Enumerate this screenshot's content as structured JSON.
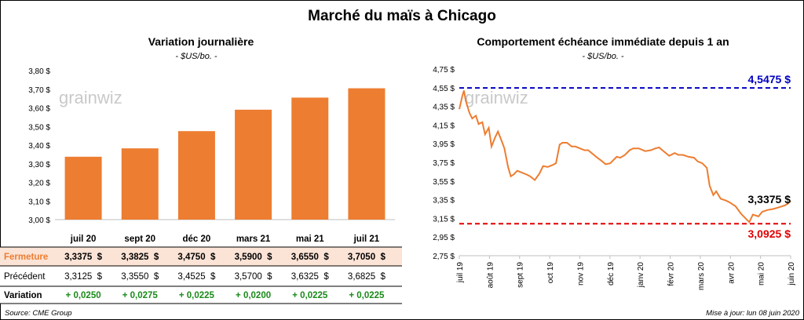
{
  "title": "Marché du maïs à Chicago",
  "left_title": "Variation  journalière",
  "left_unit": "- $US/bo. -",
  "right_title": "Comportement  échéance immédiate depuis 1 an",
  "right_unit": "- $US/bo. -",
  "source": "Source: CME Group",
  "updated": "Mise à jour: lun 08 juin 2020",
  "watermark": "grainwiz",
  "colors": {
    "bar": "#ED7D31",
    "line": "#ED7D31",
    "high": "#0000C0",
    "low": "#E00000",
    "green": "#1A8A1A",
    "row_bg": "#FBE3D6"
  },
  "table": {
    "labels": {
      "fermeture": "Fermeture",
      "precedent": "Précédent",
      "variation": "Variation"
    },
    "fermeture": [
      "3,3375  $",
      "3,3825  $",
      "3,4750  $",
      "3,5900  $",
      "3,6550  $",
      "3,7050  $"
    ],
    "precedent": [
      "3,3125  $",
      "3,3550  $",
      "3,4525  $",
      "3,5700  $",
      "3,6325  $",
      "3,6825  $"
    ],
    "variation": [
      "+ 0,0250",
      "+ 0,0275",
      "+ 0,0225",
      "+ 0,0200",
      "+ 0,0225",
      "+ 0,0225"
    ]
  },
  "chart_data": [
    {
      "type": "bar",
      "categories": [
        "juil 20",
        "sept 20",
        "déc 20",
        "mars 21",
        "mai 21",
        "juil 21"
      ],
      "values": [
        3.3375,
        3.3825,
        3.475,
        3.59,
        3.655,
        3.705
      ],
      "ylim": [
        3.0,
        3.8
      ],
      "yticks": [
        "3,00 $",
        "3,10 $",
        "3,20 $",
        "3,30 $",
        "3,40 $",
        "3,50 $",
        "3,60 $",
        "3,70 $",
        "3,80 $"
      ],
      "title": "Variation  journalière",
      "grid": false
    },
    {
      "type": "line",
      "ylim": [
        2.75,
        4.75
      ],
      "yticks": [
        "2,75 $",
        "2,95 $",
        "3,15 $",
        "3,35 $",
        "3,55 $",
        "3,75 $",
        "3,95 $",
        "4,15 $",
        "4,35 $",
        "4,55 $",
        "4,75 $"
      ],
      "xticks": [
        "juil 19",
        "août 19",
        "sept 19",
        "oct 19",
        "nov 19",
        "déc 19",
        "janv 20",
        "févr 20",
        "mars 20",
        "avr 20",
        "mai 20",
        "juin 20"
      ],
      "xlim": [
        "2019-06-14",
        "2020-06-08"
      ],
      "series": [
        {
          "x": [
            "2019-06-14",
            "2019-06-17",
            "2019-06-19",
            "2019-06-21",
            "2019-06-25",
            "2019-06-28",
            "2019-07-02",
            "2019-07-05",
            "2019-07-09",
            "2019-07-12",
            "2019-07-16",
            "2019-07-19",
            "2019-07-23",
            "2019-07-26",
            "2019-07-30",
            "2019-08-02",
            "2019-08-06",
            "2019-08-09",
            "2019-08-12",
            "2019-08-16",
            "2019-08-21",
            "2019-08-26",
            "2019-08-30",
            "2019-09-04",
            "2019-09-09",
            "2019-09-13",
            "2019-09-18",
            "2019-09-23",
            "2019-09-27",
            "2019-10-01",
            "2019-10-04",
            "2019-10-09",
            "2019-10-14",
            "2019-10-18",
            "2019-10-23",
            "2019-10-28",
            "2019-11-01",
            "2019-11-06",
            "2019-11-11",
            "2019-11-15",
            "2019-11-20",
            "2019-11-25",
            "2019-12-02",
            "2019-12-06",
            "2019-12-11",
            "2019-12-16",
            "2019-12-20",
            "2019-12-26",
            "2020-01-02",
            "2020-01-08",
            "2020-01-13",
            "2020-01-17",
            "2020-01-23",
            "2020-01-28",
            "2020-02-03",
            "2020-02-07",
            "2020-02-12",
            "2020-02-18",
            "2020-02-24",
            "2020-02-28",
            "2020-03-04",
            "2020-03-09",
            "2020-03-12",
            "2020-03-16",
            "2020-03-19",
            "2020-03-24",
            "2020-03-30",
            "2020-04-03",
            "2020-04-09",
            "2020-04-15",
            "2020-04-21",
            "2020-04-24",
            "2020-04-28",
            "2020-05-04",
            "2020-05-08",
            "2020-05-14",
            "2020-05-20",
            "2020-05-27",
            "2020-06-02",
            "2020-06-05",
            "2020-06-08"
          ],
          "y": [
            4.32,
            4.45,
            4.52,
            4.41,
            4.28,
            4.22,
            4.25,
            4.16,
            4.18,
            4.05,
            4.12,
            3.92,
            4.02,
            4.08,
            3.98,
            3.9,
            3.7,
            3.6,
            3.62,
            3.66,
            3.64,
            3.62,
            3.6,
            3.56,
            3.63,
            3.71,
            3.7,
            3.72,
            3.74,
            3.94,
            3.96,
            3.96,
            3.92,
            3.92,
            3.9,
            3.88,
            3.88,
            3.84,
            3.8,
            3.77,
            3.73,
            3.74,
            3.81,
            3.8,
            3.83,
            3.88,
            3.9,
            3.9,
            3.87,
            3.88,
            3.9,
            3.91,
            3.86,
            3.82,
            3.85,
            3.83,
            3.83,
            3.81,
            3.8,
            3.76,
            3.74,
            3.69,
            3.5,
            3.4,
            3.44,
            3.36,
            3.34,
            3.32,
            3.28,
            3.2,
            3.14,
            3.11,
            3.19,
            3.17,
            3.22,
            3.24,
            3.25,
            3.27,
            3.29,
            3.31,
            3.3375
          ]
        }
      ],
      "annotations": {
        "high": "4,5475 $",
        "low": "3,0925 $",
        "last": "3,3375 $"
      },
      "high_value": 4.5475,
      "low_value": 3.0925,
      "last_value": 3.3375,
      "title": "Comportement  échéance immédiate depuis 1 an",
      "grid": false
    }
  ]
}
